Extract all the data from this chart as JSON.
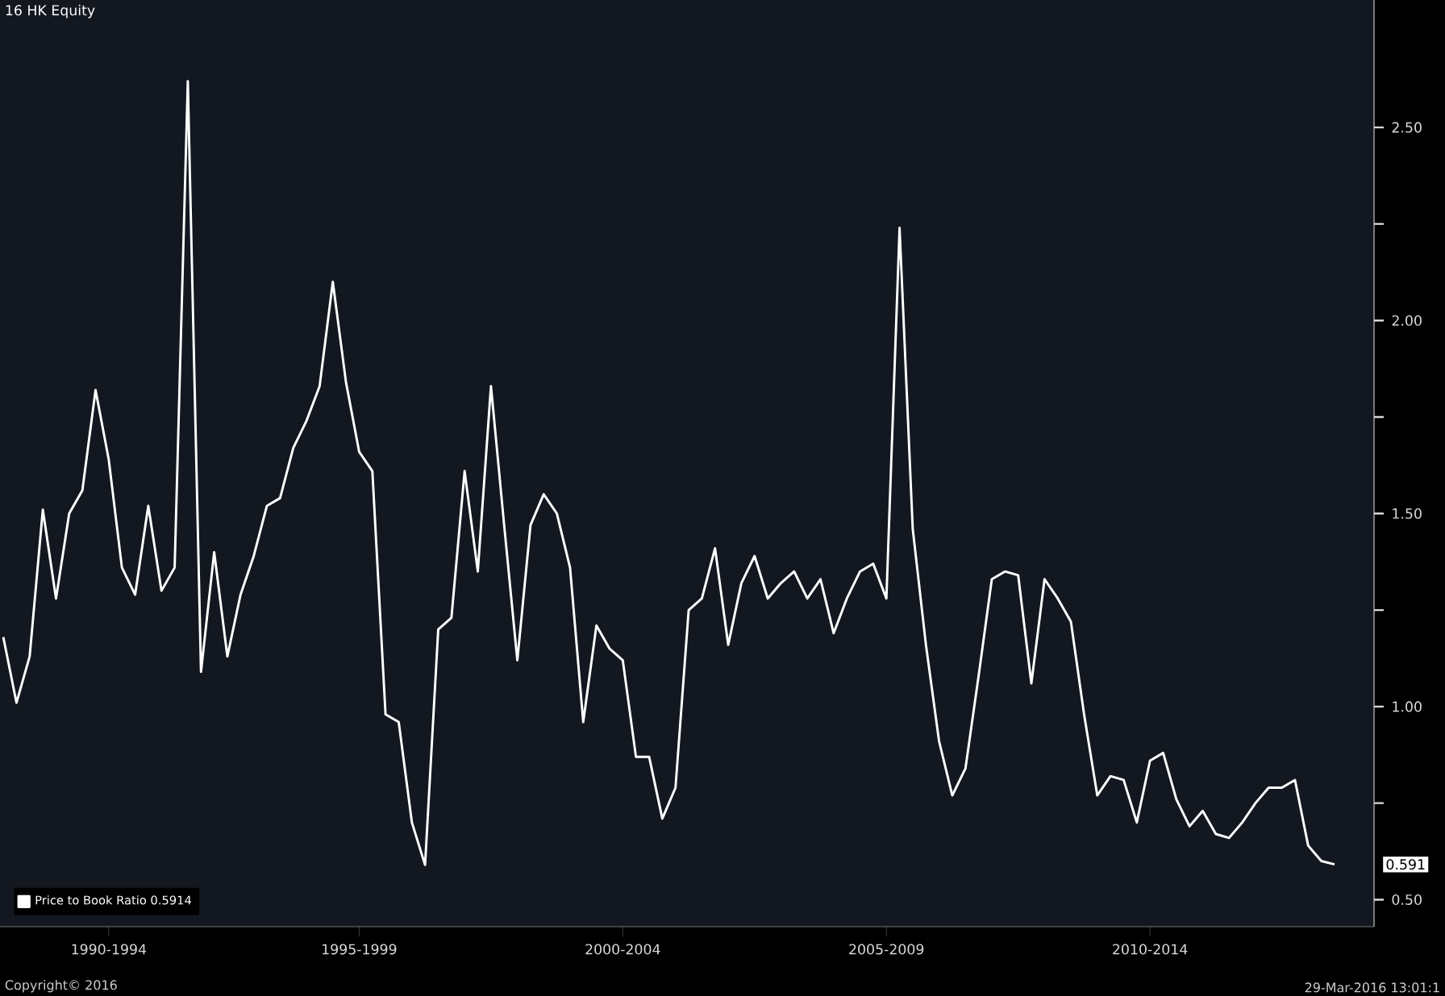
{
  "chart_data": {
    "type": "line",
    "title": "16 HK Equity",
    "categories": [
      null,
      null,
      null,
      null,
      null,
      null,
      null,
      null,
      "1990-1994",
      null,
      null,
      null,
      null,
      null,
      null,
      null,
      null,
      null,
      null,
      null,
      null,
      null,
      null,
      null,
      null,
      null,
      null,
      "1995-1999",
      null,
      null,
      null,
      null,
      null,
      null,
      null,
      null,
      null,
      null,
      null,
      null,
      null,
      null,
      null,
      null,
      null,
      null,
      null,
      "2000-2004",
      null,
      null,
      null,
      null,
      null,
      null,
      null,
      null,
      null,
      null,
      null,
      null,
      null,
      null,
      null,
      null,
      null,
      null,
      null,
      "2005-2009",
      null,
      null,
      null,
      null,
      null,
      null,
      null,
      null,
      null,
      null,
      null,
      null,
      null,
      null,
      null,
      null,
      null,
      null,
      null,
      "2010-2014",
      null,
      null,
      null,
      null,
      null,
      null,
      null,
      null,
      null,
      null,
      null,
      null,
      null,
      null
    ],
    "series": [
      {
        "name": "Price to Book Ratio 0.5914",
        "color": "#ffffff",
        "values": [
          1.18,
          1.01,
          1.13,
          1.51,
          1.28,
          1.5,
          1.56,
          1.82,
          1.64,
          1.36,
          1.29,
          1.52,
          1.3,
          1.36,
          2.62,
          1.09,
          1.4,
          1.13,
          1.29,
          1.39,
          1.52,
          1.54,
          1.67,
          1.74,
          1.83,
          2.1,
          1.84,
          1.66,
          1.61,
          0.98,
          0.96,
          0.7,
          0.59,
          1.2,
          1.23,
          1.61,
          1.35,
          1.83,
          1.47,
          1.12,
          1.47,
          1.55,
          1.5,
          1.36,
          0.96,
          1.21,
          1.15,
          1.12,
          0.87,
          0.87,
          0.71,
          0.79,
          1.25,
          1.28,
          1.41,
          1.16,
          1.32,
          1.39,
          1.28,
          1.32,
          1.35,
          1.28,
          1.33,
          1.19,
          1.28,
          1.35,
          1.37,
          1.28,
          2.24,
          1.46,
          1.16,
          0.91,
          0.77,
          0.84,
          1.08,
          1.33,
          1.35,
          1.34,
          1.06,
          1.33,
          1.28,
          1.22,
          0.98,
          0.77,
          0.82,
          0.81,
          0.7,
          0.86,
          0.88,
          0.76,
          0.69,
          0.73,
          0.67,
          0.66,
          0.7,
          0.75,
          0.79,
          0.79,
          0.81,
          0.64,
          0.6,
          0.5914
        ]
      }
    ],
    "ylim": [
      0.43,
      2.83
    ],
    "yticks": [
      {
        "value": 0.5,
        "label": "0.50"
      },
      {
        "value": 1.0,
        "label": "1.00"
      },
      {
        "value": 1.5,
        "label": "1.50"
      },
      {
        "value": 2.0,
        "label": "2.00"
      },
      {
        "value": 2.5,
        "label": "2.50"
      }
    ],
    "legend": "bottom left",
    "marker": "none",
    "line_style": "solid",
    "annotations": [
      "0.591",
      "Copyright© 2016",
      "29-Mar-2016 13:01:1"
    ]
  }
}
